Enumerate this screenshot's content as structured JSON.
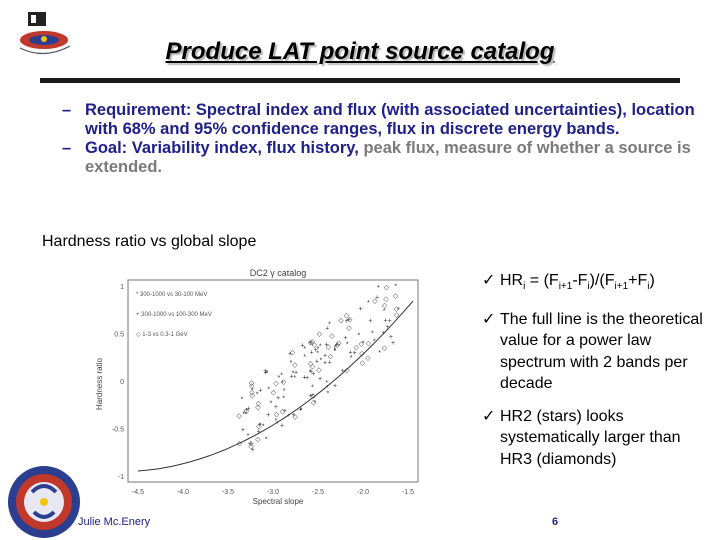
{
  "title": "Produce LAT point source catalog",
  "bullets": [
    {
      "dash": "–",
      "text": "Requirement: Spectral index and flux (with associated uncertainties), location with 68% and 95% confidence ranges, flux in discrete energy bands."
    },
    {
      "dash": "–",
      "text_a": "Goal: Variability index, flux history,",
      "text_grey": " peak flux, measure of whether a source is extended."
    }
  ],
  "subheading": "Hardness ratio vs global slope",
  "checks": {
    "mark": "ü",
    "hr_prefix": "HR",
    "hr_i": "i",
    "hr_eq": " = (F",
    "hr_i1": "i+1",
    "hr_mid": "-F",
    "hr_i2": "i",
    "hr_mid2": ")/(F",
    "hr_i3": "i+1",
    "hr_plus": "+F",
    "hr_i4": "i",
    "hr_end": ")",
    "item2": "The full line is the theoretical value for a power law spectrum with 2 bands per decade",
    "item3": "HR2 (stars) looks systematically larger than HR3 (diamonds)"
  },
  "plot": {
    "title": "DC2 γ catalog",
    "ylabel": "Hardness ratio",
    "xlabel": "Spectral slope",
    "xticks": [
      "-4.5",
      "-4.0",
      "-3.5",
      "-3.0",
      "-2.5",
      "-2.0",
      "-1.5"
    ],
    "yticks": [
      "1",
      "0.5",
      "0",
      "-0.5",
      "-1"
    ],
    "legend": [
      "300-1000 vs 30-100 MeV",
      "300-1000 vs 100-300 MeV",
      "1-3 vs 0.3-1 GeV"
    ]
  },
  "footer": {
    "author": "Julie Mc.Enery",
    "page": "6"
  },
  "colors": {
    "bullet_text": "#20208a",
    "grey_text": "#7a7a7a",
    "rule": "#1a1a1a"
  }
}
